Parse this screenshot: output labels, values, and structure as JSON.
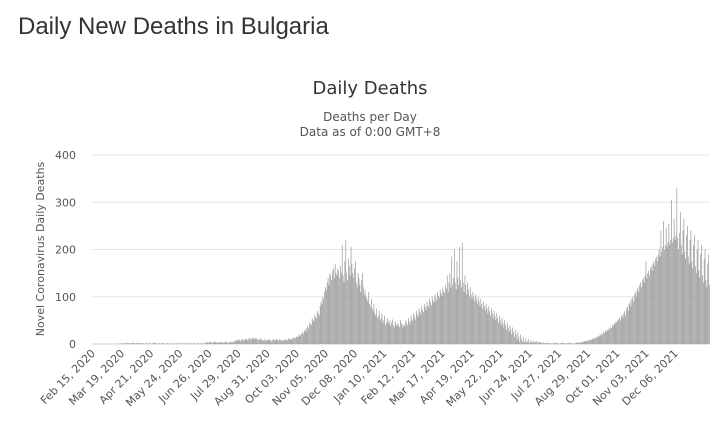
{
  "page": {
    "title": "Daily New Deaths in Bulgaria"
  },
  "chart_data": {
    "type": "bar",
    "title": "Daily Deaths",
    "subtitle": [
      "Deaths per Day",
      "Data as of 0:00 GMT+8"
    ],
    "ylabel": "Novel Coronavirus Daily Deaths",
    "xlabel": "",
    "ylim": [
      0,
      400
    ],
    "yticks": [
      0,
      100,
      200,
      300,
      400
    ],
    "grid": true,
    "legend": "none",
    "bar_color": "#9b9b9b",
    "start_date": "2020-02-15",
    "end_date": "2022-01-14",
    "xtick_labels": [
      "Feb 15, 2020",
      "Mar 19, 2020",
      "Apr 21, 2020",
      "May 24, 2020",
      "Jun 26, 2020",
      "Jul 29, 2020",
      "Aug 31, 2020",
      "Oct 03, 2020",
      "Nov 05, 2020",
      "Dec 08, 2020",
      "Jan 10, 2021",
      "Feb 12, 2021",
      "Mar 17, 2021",
      "Apr 19, 2021",
      "May 22, 2021",
      "Jun 24, 2021",
      "Jul 27, 2021",
      "Aug 29, 2021",
      "Oct 01, 2021",
      "Nov 03, 2021",
      "Dec 06, 2021"
    ],
    "series": [
      {
        "values": [
          0,
          0,
          0,
          0,
          0,
          0,
          0,
          0,
          0,
          0,
          0,
          0,
          0,
          0,
          0,
          0,
          0,
          0,
          0,
          0,
          0,
          0,
          0,
          0,
          0,
          0,
          0,
          1,
          0,
          1,
          0,
          1,
          0,
          2,
          1,
          0,
          2,
          1,
          2,
          1,
          3,
          2,
          1,
          2,
          1,
          2,
          3,
          1,
          2,
          1,
          2,
          1,
          3,
          2,
          1,
          2,
          1,
          2,
          1,
          0,
          1,
          2,
          1,
          0,
          1,
          2,
          1,
          0,
          1,
          2,
          3,
          1,
          2,
          1,
          0,
          1,
          2,
          1,
          0,
          2,
          1,
          2,
          1,
          0,
          1,
          2,
          1,
          0,
          1,
          2,
          1,
          0,
          1,
          0,
          1,
          2,
          1,
          0,
          1,
          2,
          1,
          0,
          2,
          1,
          2,
          0,
          1,
          2,
          1,
          0,
          1,
          2,
          1,
          0,
          1,
          2,
          1,
          0,
          1,
          2,
          1,
          0,
          1,
          2,
          1,
          0,
          2,
          1,
          3,
          2,
          4,
          3,
          2,
          5,
          4,
          3,
          2,
          4,
          3,
          5,
          4,
          3,
          2,
          4,
          3,
          5,
          4,
          3,
          2,
          4,
          3,
          5,
          4,
          3,
          2,
          4,
          3,
          5,
          4,
          3,
          5,
          7,
          6,
          8,
          9,
          7,
          10,
          8,
          6,
          9,
          11,
          8,
          7,
          10,
          12,
          9,
          8,
          11,
          13,
          10,
          9,
          12,
          14,
          11,
          10,
          13,
          12,
          10,
          9,
          8,
          12,
          10,
          9,
          7,
          8,
          10,
          6,
          9,
          8,
          7,
          10,
          9,
          8,
          6,
          9,
          10,
          8,
          7,
          9,
          11,
          8,
          7,
          10,
          9,
          8,
          7,
          6,
          9,
          8,
          10,
          9,
          8,
          12,
          10,
          11,
          9,
          12,
          10,
          14,
          13,
          12,
          16,
          15,
          14,
          18,
          20,
          17,
          22,
          25,
          21,
          28,
          30,
          26,
          34,
          38,
          32,
          45,
          42,
          40,
          55,
          50,
          48,
          62,
          58,
          55,
          70,
          65,
          60,
          80,
          90,
          85,
          100,
          95,
          110,
          120,
          115,
          130,
          140,
          125,
          150,
          145,
          135,
          155,
          160,
          140,
          170,
          150,
          145,
          160,
          155,
          140,
          165,
          150,
          210,
          145,
          130,
          175,
          220,
          150,
          135,
          180,
          165,
          145,
          205,
          170,
          150,
          140,
          160,
          175,
          130,
          120,
          150,
          140,
          125,
          110,
          135,
          150,
          120,
          105,
          115,
          100,
          95,
          90,
          110,
          85,
          80,
          95,
          75,
          70,
          85,
          65,
          60,
          75,
          55,
          60,
          70,
          50,
          55,
          65,
          45,
          50,
          60,
          40,
          45,
          55,
          48,
          42,
          50,
          38,
          45,
          52,
          40,
          35,
          48,
          42,
          38,
          45,
          40,
          36,
          50,
          44,
          40,
          35,
          42,
          38,
          50,
          45,
          40,
          55,
          48,
          42,
          60,
          52,
          48,
          65,
          58,
          52,
          70,
          62,
          58,
          75,
          68,
          62,
          80,
          72,
          68,
          85,
          78,
          72,
          90,
          82,
          78,
          95,
          88,
          82,
          100,
          92,
          88,
          105,
          98,
          92,
          110,
          102,
          98,
          115,
          108,
          102,
          120,
          112,
          108,
          125,
          118,
          145,
          110,
          130,
          150,
          120,
          185,
          125,
          140,
          200,
          130,
          115,
          175,
          140,
          125,
          205,
          135,
          120,
          215,
          130,
          110,
          145,
          125,
          105,
          130,
          115,
          100,
          120,
          105,
          95,
          110,
          100,
          90,
          105,
          95,
          85,
          100,
          90,
          80,
          95,
          85,
          75,
          90,
          80,
          70,
          85,
          75,
          65,
          80,
          70,
          60,
          75,
          65,
          55,
          70,
          60,
          50,
          65,
          55,
          45,
          60,
          50,
          40,
          55,
          45,
          35,
          50,
          40,
          30,
          45,
          35,
          25,
          40,
          30,
          20,
          35,
          25,
          15,
          30,
          20,
          10,
          25,
          15,
          5,
          20,
          10,
          5,
          15,
          5,
          3,
          12,
          4,
          6,
          10,
          3,
          5,
          8,
          2,
          4,
          7,
          3,
          5,
          6,
          2,
          4,
          5,
          3,
          2,
          4,
          1,
          3,
          2,
          1,
          2,
          3,
          1,
          2,
          1,
          2,
          1,
          0,
          2,
          1,
          3,
          2,
          1,
          2,
          1,
          0,
          2,
          1,
          2,
          3,
          1,
          2,
          1,
          0,
          2,
          1,
          3,
          2,
          1,
          2,
          1,
          0,
          2,
          1,
          3,
          2,
          4,
          3,
          2,
          4,
          3,
          5,
          4,
          6,
          5,
          7,
          6,
          8,
          7,
          9,
          8,
          10,
          9,
          12,
          11,
          13,
          12,
          15,
          14,
          17,
          16,
          20,
          18,
          22,
          20,
          25,
          23,
          28,
          26,
          30,
          28,
          33,
          31,
          36,
          34,
          40,
          38,
          44,
          42,
          48,
          46,
          50,
          52,
          55,
          50,
          58,
          62,
          55,
          65,
          70,
          60,
          75,
          80,
          70,
          85,
          90,
          80,
          95,
          100,
          90,
          105,
          110,
          100,
          115,
          120,
          110,
          125,
          130,
          120,
          135,
          140,
          130,
          145,
          175,
          140,
          150,
          155,
          145,
          160,
          165,
          155,
          170,
          175,
          165,
          180,
          185,
          175,
          190,
          200,
          185,
          240,
          195,
          205,
          260,
          200,
          210,
          245,
          205,
          215,
          255,
          210,
          220,
          305,
          215,
          225,
          265,
          220,
          230,
          330,
          225,
          200,
          235,
          280,
          210,
          190,
          240,
          265,
          195,
          180,
          230,
          250,
          185,
          170,
          220,
          240,
          175,
          160,
          210,
          230,
          165,
          150,
          200,
          220,
          155,
          140,
          190,
          210,
          145,
          130,
          180,
          200,
          135,
          120,
          170,
          190,
          125,
          110,
          160,
          175,
          115,
          100,
          150,
          165,
          105,
          90,
          140,
          155,
          95,
          80,
          130,
          145,
          85,
          70,
          120,
          135,
          75,
          60,
          110,
          125,
          65
        ]
      }
    ]
  }
}
